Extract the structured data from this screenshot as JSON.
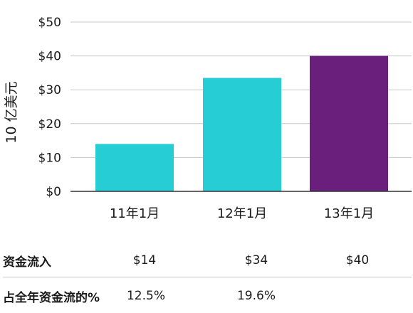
{
  "chart_data": {
    "type": "bar",
    "ylabel": "10 亿美元",
    "categories": [
      "11年1月",
      "12年1月",
      "13年1月"
    ],
    "values": [
      14,
      33.5,
      40
    ],
    "colors": [
      "#27cdd4",
      "#27cdd4",
      "#6b1f7c"
    ],
    "ylim": [
      0,
      50
    ],
    "yticks": [
      0,
      10,
      20,
      30,
      40,
      50
    ],
    "ytick_labels": [
      "$0",
      "$10",
      "$20",
      "$30",
      "$40",
      "$50"
    ],
    "grid": true
  },
  "table": {
    "rows": [
      {
        "label": "资金流入",
        "cells": [
          "$14",
          "$34",
          "$40"
        ]
      },
      {
        "label": "占全年资金流的%",
        "cells": [
          "12.5%",
          "19.6%",
          ""
        ]
      }
    ]
  }
}
